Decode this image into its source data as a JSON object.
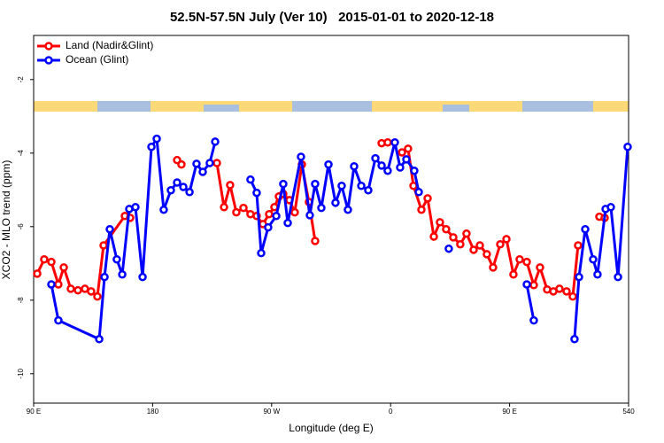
{
  "chart_data": {
    "type": "line",
    "title": "52.5N-57.5N July (Ver 10)   2015-01-01 to 2020-12-18",
    "x_label": "Longitude (deg E)",
    "y_label": "XCO2 - MLO trend (ppm)",
    "xlim": [
      90,
      540
    ],
    "ylim": [
      -10.8,
      -0.8
    ],
    "xticks": [
      {
        "value": 90,
        "label": "90 E"
      },
      180,
      {
        "value": 270,
        "label": "90 W"
      },
      {
        "value": 360,
        "label": "0"
      },
      {
        "value": 450,
        "label": "90 E"
      },
      540
    ],
    "yticks": [
      -2,
      -4,
      -6,
      -8,
      -10
    ],
    "legend": "top-left",
    "series": [
      {
        "name": "Land (Nadir&Glint)",
        "color": "#ff0000",
        "x": [
          92.7,
          98,
          103.4,
          108.7,
          112.8,
          118.1,
          123.5,
          128.8,
          133.5,
          138.2,
          142.9,
          159,
          163,
          null,
          198.5,
          201.8,
          null,
          228.6,
          234,
          238.6,
          243.3,
          248.7,
          254,
          258.7,
          263.4,
          268.1,
          272.1,
          275.5,
          278.8,
          283.5,
          287.5,
          292.9,
          298.2,
          302.9,
          null,
          353.2,
          357.8,
          null,
          368.6,
          373.2,
          377.3,
          383.3,
          388,
          392.7,
          397.3,
          402,
          407.4,
          412.7,
          417.4,
          422.8,
          427.5,
          432.8,
          437.5,
          442.9,
          447.6,
          452.9,
          457.6,
          463,
          468.3,
          473,
          478.4,
          483.1,
          487.7,
          493.1,
          497.8,
          501.8,
          null,
          517.9,
          521.9
        ],
        "values": [
          -7.28,
          -6.89,
          -6.96,
          -7.57,
          -7.11,
          -7.69,
          -7.73,
          -7.69,
          -7.76,
          -7.9,
          -6.51,
          -5.71,
          -5.76,
          null,
          -4.19,
          -4.31,
          null,
          -4.27,
          -5.47,
          -4.87,
          -5.61,
          -5.49,
          -5.66,
          -5.71,
          -5.93,
          -5.66,
          -5.47,
          -5.18,
          -5.11,
          -5.28,
          -5.61,
          -4.31,
          -5.33,
          -6.39,
          null,
          -3.73,
          -3.71,
          null,
          -3.98,
          -3.88,
          -4.89,
          -5.54,
          -5.23,
          -6.27,
          -5.88,
          -6.07,
          -6.29,
          -6.48,
          -6.19,
          -6.63,
          -6.51,
          -6.75,
          -7.11,
          -6.48,
          -6.34,
          -7.3,
          -6.89,
          -6.96,
          -7.59,
          -7.11,
          -7.71,
          -7.76,
          -7.69,
          -7.76,
          -7.9,
          -6.51,
          null,
          -5.73,
          -5.76
        ]
      },
      {
        "name": "Ocean (Glint)",
        "color": "#0000ff",
        "x": [
          103.4,
          108.7,
          139.6,
          143.6,
          147.6,
          152.9,
          157,
          162.3,
          167,
          172.4,
          179.1,
          183.1,
          188.4,
          193.8,
          198.5,
          203.2,
          207.9,
          213.2,
          217.9,
          223.2,
          227.3,
          null,
          254,
          258.7,
          262.1,
          267.4,
          273.5,
          278.8,
          282.2,
          292.2,
          298.9,
          302.9,
          307.6,
          313,
          318.3,
          323,
          327.7,
          332.4,
          337.8,
          343.1,
          348.5,
          353.2,
          357.8,
          363.2,
          367.2,
          371.9,
          377.9,
          381.3,
          null,
          404,
          null,
          463,
          468.3,
          null,
          499.1,
          502.5,
          507.2,
          513.2,
          516.5,
          522.6,
          526.6,
          532,
          539.3
        ],
        "values": [
          -7.57,
          -8.55,
          -9.06,
          -7.37,
          -6.07,
          -6.89,
          -7.3,
          -5.52,
          -5.47,
          -7.37,
          -3.83,
          -3.61,
          -5.54,
          -5.01,
          -4.8,
          -4.92,
          -5.06,
          -4.29,
          -4.51,
          -4.27,
          -3.69,
          null,
          -4.72,
          -5.08,
          -6.72,
          -6.02,
          -5.71,
          -4.84,
          -5.9,
          -4.1,
          -5.69,
          -4.84,
          -5.49,
          -4.31,
          -5.35,
          -4.89,
          -5.54,
          -4.36,
          -4.89,
          -5.01,
          -4.14,
          -4.34,
          -4.48,
          -3.71,
          -4.39,
          -4.17,
          -4.48,
          -5.06,
          null,
          -6.6,
          null,
          -7.57,
          -8.55,
          null,
          -9.06,
          -7.37,
          -6.07,
          -6.89,
          -7.3,
          -5.52,
          -5.47,
          -7.37,
          -3.83
        ]
      }
    ]
  }
}
